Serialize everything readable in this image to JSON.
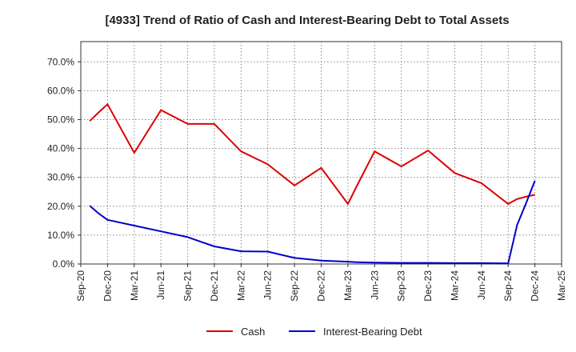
{
  "chart_data": {
    "type": "line",
    "title": "[4933]  Trend of Ratio of Cash and Interest-Bearing Debt to Total Assets",
    "xlabel": "",
    "ylabel": "",
    "x_tick_labels": [
      "Sep-20",
      "Dec-20",
      "Mar-21",
      "Jun-21",
      "Sep-21",
      "Dec-21",
      "Mar-22",
      "Jun-22",
      "Sep-22",
      "Dec-22",
      "Mar-23",
      "Jun-23",
      "Sep-23",
      "Dec-23",
      "Mar-24",
      "Jun-24",
      "Sep-24",
      "Dec-24",
      "Mar-25"
    ],
    "y_tick_labels": [
      "0.0%",
      "10.0%",
      "20.0%",
      "30.0%",
      "40.0%",
      "50.0%",
      "60.0%",
      "70.0%"
    ],
    "ylim": [
      0,
      77
    ],
    "grid": true,
    "legend_position": "bottom",
    "x": [
      "Oct-20",
      "Nov-20",
      "Dec-20",
      "Mar-21",
      "Jun-21",
      "Sep-21",
      "Dec-21",
      "Mar-22",
      "Jun-22",
      "Sep-22",
      "Dec-22",
      "Mar-23",
      "Apr-23",
      "Jun-23",
      "Sep-23",
      "Dec-23",
      "Mar-24",
      "Jun-24",
      "Sep-24",
      "Oct-24",
      "Nov-24",
      "Dec-24"
    ],
    "series": [
      {
        "name": "Cash",
        "color": "#dd0000",
        "values": [
          49.5,
          52.5,
          55.3,
          38.5,
          53.3,
          48.5,
          48.5,
          39.0,
          34.5,
          27.2,
          33.3,
          20.8,
          27.0,
          39.0,
          33.8,
          39.3,
          31.5,
          28.0,
          20.8,
          22.5,
          23.3,
          24.0
        ]
      },
      {
        "name": "Interest-Bearing Debt",
        "color": "#0000cc",
        "values": [
          20.2,
          17.5,
          15.3,
          13.3,
          11.3,
          9.3,
          6.1,
          4.4,
          4.3,
          2.1,
          1.2,
          0.8,
          0.6,
          0.5,
          0.4,
          0.4,
          0.3,
          0.3,
          0.2,
          13.5,
          21.0,
          28.8
        ]
      }
    ]
  }
}
